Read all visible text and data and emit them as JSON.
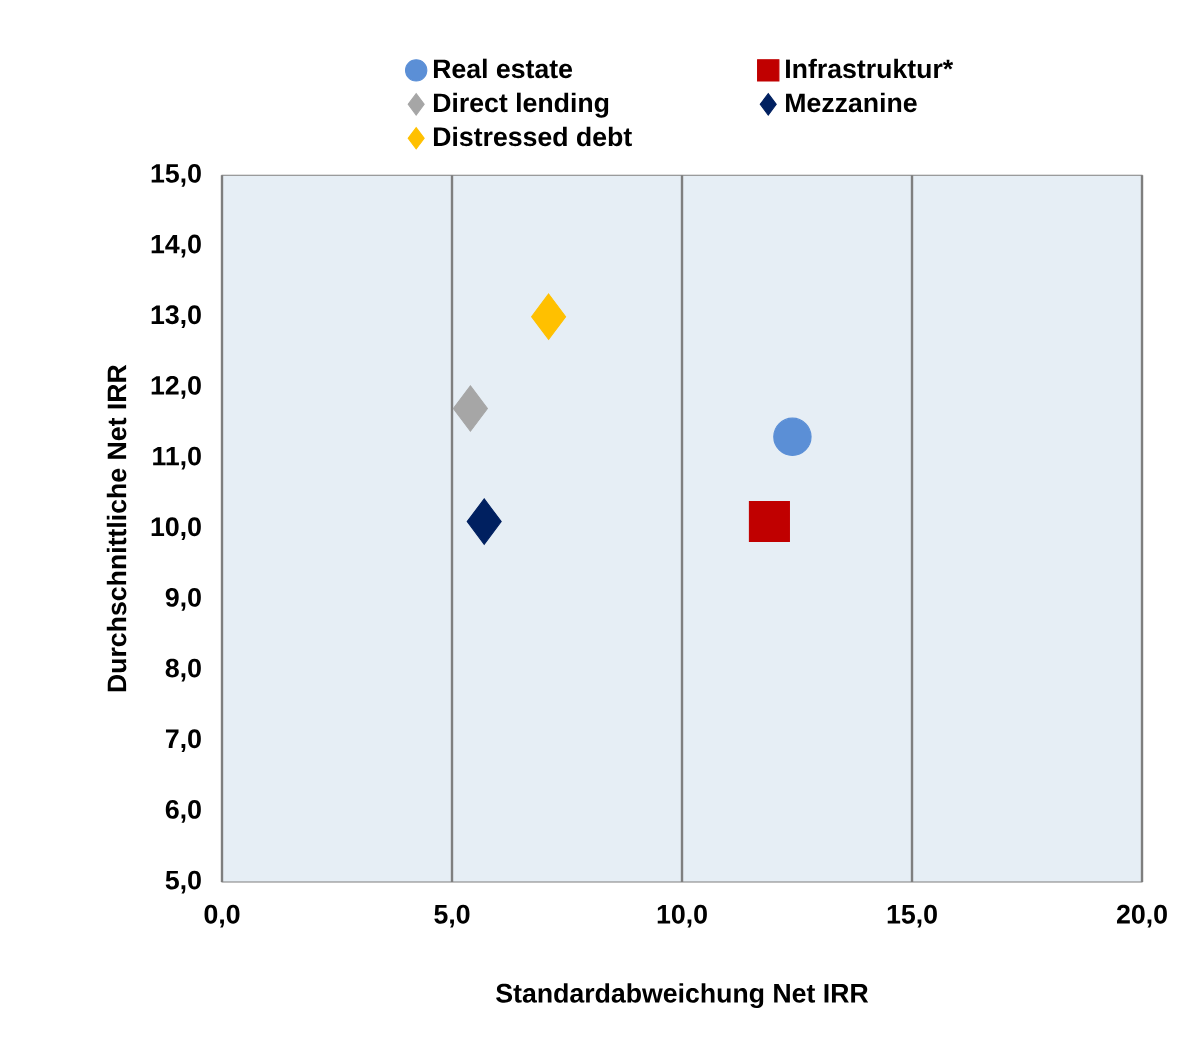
{
  "chart_data": {
    "type": "scatter",
    "xlabel": "Standardabweichung Net IRR",
    "ylabel": "Durchschnittliche Net IRR",
    "xlim": [
      0,
      20
    ],
    "ylim": [
      5,
      15
    ],
    "xticks": [
      {
        "value": 0,
        "label": "0,0"
      },
      {
        "value": 5,
        "label": "5,0"
      },
      {
        "value": 10,
        "label": "10,0"
      },
      {
        "value": 15,
        "label": "15,0"
      },
      {
        "value": 20,
        "label": "20,0"
      }
    ],
    "yticks": [
      {
        "value": 5,
        "label": "5,0"
      },
      {
        "value": 6,
        "label": "6,0"
      },
      {
        "value": 7,
        "label": "7,0"
      },
      {
        "value": 8,
        "label": "8,0"
      },
      {
        "value": 9,
        "label": "9,0"
      },
      {
        "value": 10,
        "label": "10,0"
      },
      {
        "value": 11,
        "label": "11,0"
      },
      {
        "value": 12,
        "label": "12,0"
      },
      {
        "value": 13,
        "label": "13,0"
      },
      {
        "value": 14,
        "label": "14,0"
      },
      {
        "value": 15,
        "label": "15,0"
      }
    ],
    "grid": "x",
    "legend": "top",
    "series": [
      {
        "name": "Real estate",
        "color": "#5b8fd6",
        "marker": "circle",
        "x": [
          12.4
        ],
        "values": [
          11.3
        ]
      },
      {
        "name": "Infrastruktur*",
        "color": "#c00000",
        "marker": "square",
        "x": [
          11.9
        ],
        "values": [
          10.1
        ]
      },
      {
        "name": "Direct lending",
        "color": "#a6a6a6",
        "marker": "diamond",
        "x": [
          5.4
        ],
        "values": [
          11.7
        ]
      },
      {
        "name": "Mezzanine",
        "color": "#002060",
        "marker": "diamond",
        "x": [
          5.7
        ],
        "values": [
          10.1
        ]
      },
      {
        "name": "Distressed debt",
        "color": "#ffc000",
        "marker": "diamond",
        "x": [
          7.1
        ],
        "values": [
          13.0
        ]
      }
    ]
  }
}
